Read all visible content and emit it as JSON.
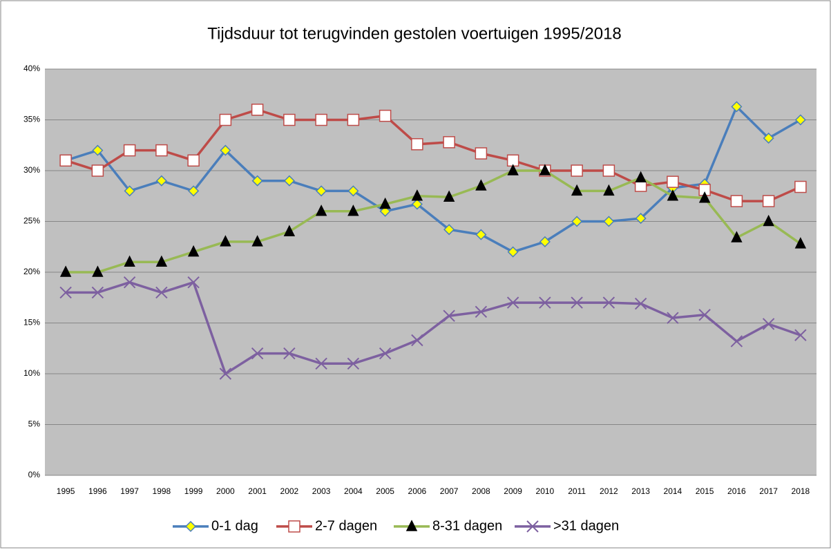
{
  "chart_data": {
    "type": "line",
    "title": "Tijdsduur tot terugvinden gestolen voertuigen 1995/2018",
    "categories": [
      "1995",
      "1996",
      "1997",
      "1998",
      "1999",
      "2000",
      "2001",
      "2002",
      "2003",
      "2004",
      "2005",
      "2006",
      "2007",
      "2008",
      "2009",
      "2010",
      "2011",
      "2012",
      "2013",
      "2014",
      "2015",
      "2016",
      "2017",
      "2018"
    ],
    "series": [
      {
        "name": "0-1 dag",
        "color": "#4a7ebb",
        "marker": "diamond",
        "marker_fill": "#ffff00",
        "marker_stroke": "#4a7ebb",
        "values": [
          31,
          32,
          28,
          29,
          28,
          32,
          29,
          29,
          28,
          28,
          26,
          26.7,
          24.2,
          23.7,
          22,
          23,
          25,
          25,
          25.3,
          28.3,
          28.7,
          36.3,
          33.2,
          35
        ]
      },
      {
        "name": "2-7 dagen",
        "color": "#be4b48",
        "marker": "square",
        "marker_fill": "#ffffff",
        "marker_stroke": "#be4b48",
        "values": [
          31,
          30,
          32,
          32,
          31,
          35,
          36,
          35,
          35,
          35,
          35.4,
          32.6,
          32.8,
          31.7,
          31,
          30,
          30,
          30,
          28.5,
          28.9,
          28.1,
          27,
          27,
          28.4
        ]
      },
      {
        "name": "8-31 dagen",
        "color": "#98b954",
        "marker": "triangle",
        "marker_fill": "#000000",
        "marker_stroke": "#000000",
        "values": [
          20,
          20,
          21,
          21,
          22,
          23,
          23,
          24,
          26,
          26,
          26.7,
          27.5,
          27.4,
          28.5,
          30,
          30,
          28,
          28,
          29.3,
          27.5,
          27.3,
          23.4,
          25,
          22.8
        ]
      },
      {
        "name": ">31 dagen",
        "color": "#7d60a0",
        "marker": "x",
        "marker_fill": "none",
        "marker_stroke": "#7d60a0",
        "values": [
          18,
          18,
          19,
          18,
          19,
          10,
          12,
          12,
          11,
          11,
          12,
          13.3,
          15.7,
          16.1,
          17,
          17,
          17,
          17,
          16.9,
          15.5,
          15.8,
          13.2,
          14.9,
          13.8
        ]
      }
    ],
    "ylim": [
      0,
      40
    ],
    "yticks": [
      {
        "value": 0,
        "label": "0%"
      },
      {
        "value": 5,
        "label": "5%"
      },
      {
        "value": 10,
        "label": "10%"
      },
      {
        "value": 15,
        "label": "15%"
      },
      {
        "value": 20,
        "label": "20%"
      },
      {
        "value": 25,
        "label": "25%"
      },
      {
        "value": 30,
        "label": "30%"
      },
      {
        "value": 35,
        "label": "35%"
      },
      {
        "value": 40,
        "label": "40%"
      }
    ],
    "grid": true,
    "legend": "bottom",
    "plot_background": "#c0c0c0"
  }
}
